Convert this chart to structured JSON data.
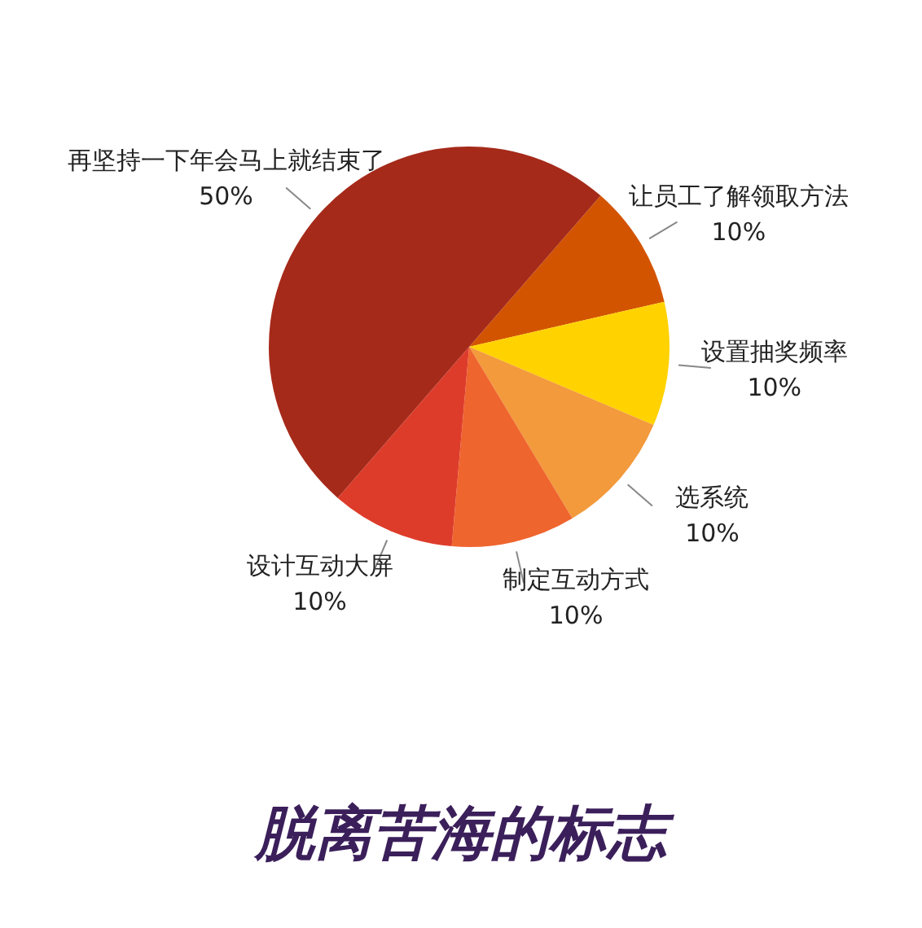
{
  "chart_data": {
    "type": "pie",
    "title": "脱离苦海的标志",
    "categories": [
      "让员工了解领取方法",
      "设置抽奖频率",
      "选系统",
      "制定互动方式",
      "设计互动大屏",
      "再坚持一下年会马上就结束了"
    ],
    "values": [
      10,
      10,
      10,
      10,
      10,
      50
    ],
    "value_labels": [
      "10%",
      "10%",
      "10%",
      "10%",
      "10%",
      "50%"
    ],
    "colors": [
      "#d35400",
      "#ffd200",
      "#f39a3c",
      "#ef652e",
      "#de3c2b",
      "#a52a1a"
    ],
    "legend": false
  }
}
